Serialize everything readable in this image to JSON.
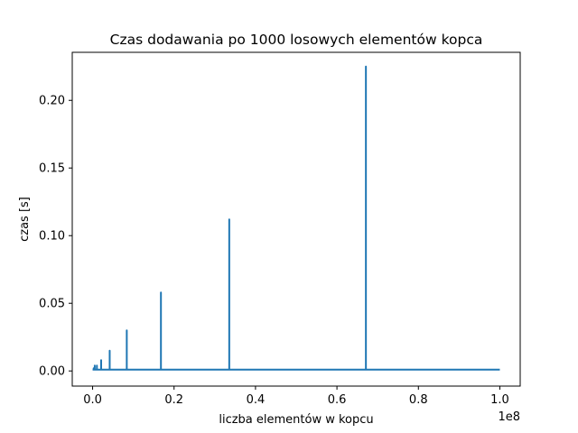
{
  "chart_data": {
    "type": "line",
    "title": "Czas dodawania po 1000 losowych elementów kopca",
    "xlabel": "liczba elementów w kopcu",
    "ylabel": "czas [s]",
    "x_offset_label": "1e8",
    "xlim": [
      -0.05,
      1.05
    ],
    "ylim": [
      -0.0112,
      0.2355
    ],
    "x_ticks": [
      0.0,
      0.2,
      0.4,
      0.6,
      0.8,
      1.0
    ],
    "x_tick_labels": [
      "0.0",
      "0.2",
      "0.4",
      "0.6",
      "0.8",
      "1.0"
    ],
    "y_ticks": [
      0.0,
      0.05,
      0.1,
      0.15,
      0.2
    ],
    "y_tick_labels": [
      "0.00",
      "0.05",
      "0.10",
      "0.15",
      "0.20"
    ],
    "grid": false,
    "legend": "none",
    "series": [
      {
        "color": "#1f77b4",
        "baseline": 0.001,
        "x_range": [
          0.0,
          1.0
        ],
        "points": [
          {
            "x": 0.0,
            "y": 0.001
          },
          {
            "x": 0.00262,
            "y": 0.002
          },
          {
            "x": 0.00524,
            "y": 0.004
          },
          {
            "x": 0.01049,
            "y": 0.004
          },
          {
            "x": 0.02097,
            "y": 0.008
          },
          {
            "x": 0.04194,
            "y": 0.015
          },
          {
            "x": 0.08389,
            "y": 0.03
          },
          {
            "x": 0.16777,
            "y": 0.058
          },
          {
            "x": 0.33554,
            "y": 0.112
          },
          {
            "x": 0.67109,
            "y": 0.225
          },
          {
            "x": 1.0,
            "y": 0.001
          }
        ]
      }
    ]
  }
}
